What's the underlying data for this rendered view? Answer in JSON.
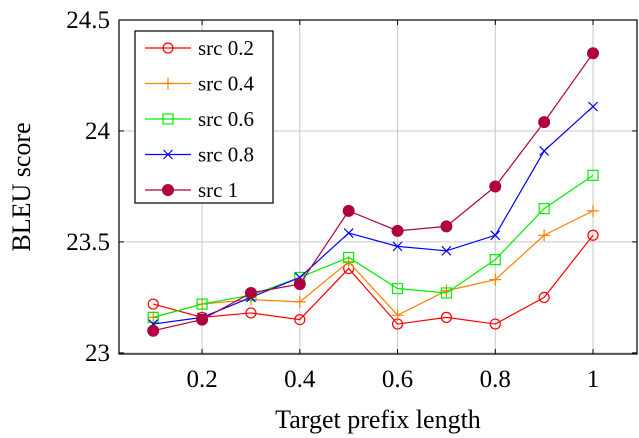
{
  "chart_data": {
    "type": "line",
    "title": "",
    "xlabel": "Target prefix length",
    "ylabel": "BLEU score",
    "xlim": [
      0.03,
      1.09
    ],
    "ylim": [
      22.995,
      24.5
    ],
    "x_ticks": [
      "0.2",
      "0.4",
      "0.6",
      "0.8",
      "1"
    ],
    "x_tick_values": [
      0.2,
      0.4,
      0.6,
      0.8,
      1.0
    ],
    "y_ticks": [
      "23",
      "23.5",
      "24",
      "24.5"
    ],
    "y_tick_values": [
      23,
      23.5,
      24,
      24.5
    ],
    "grid": true,
    "legend_position": "top-left",
    "x": [
      0.1,
      0.2,
      0.3,
      0.4,
      0.5,
      0.6,
      0.7,
      0.8,
      0.9,
      1.0
    ],
    "series": [
      {
        "name": "src 0.2",
        "color": "#ff0000",
        "marker": "circle-open",
        "values": [
          23.22,
          23.16,
          23.18,
          23.15,
          23.38,
          23.13,
          23.16,
          23.13,
          23.25,
          23.53
        ]
      },
      {
        "name": "src 0.4",
        "color": "#ff8000",
        "marker": "plus",
        "values": [
          23.16,
          23.22,
          23.24,
          23.23,
          23.41,
          23.17,
          23.28,
          23.33,
          23.53,
          23.64
        ]
      },
      {
        "name": "src 0.6",
        "color": "#00ee00",
        "marker": "square-open",
        "values": [
          23.16,
          23.22,
          23.26,
          23.34,
          23.43,
          23.29,
          23.27,
          23.42,
          23.65,
          23.8
        ]
      },
      {
        "name": "src 0.8",
        "color": "#0000ff",
        "marker": "x",
        "values": [
          23.13,
          23.16,
          23.25,
          23.34,
          23.54,
          23.48,
          23.46,
          23.53,
          23.91,
          24.11
        ]
      },
      {
        "name": "src 1",
        "color": "#b00040",
        "marker": "circle-filled",
        "values": [
          23.1,
          23.15,
          23.27,
          23.31,
          23.64,
          23.55,
          23.57,
          23.75,
          24.04,
          24.35
        ]
      }
    ]
  }
}
